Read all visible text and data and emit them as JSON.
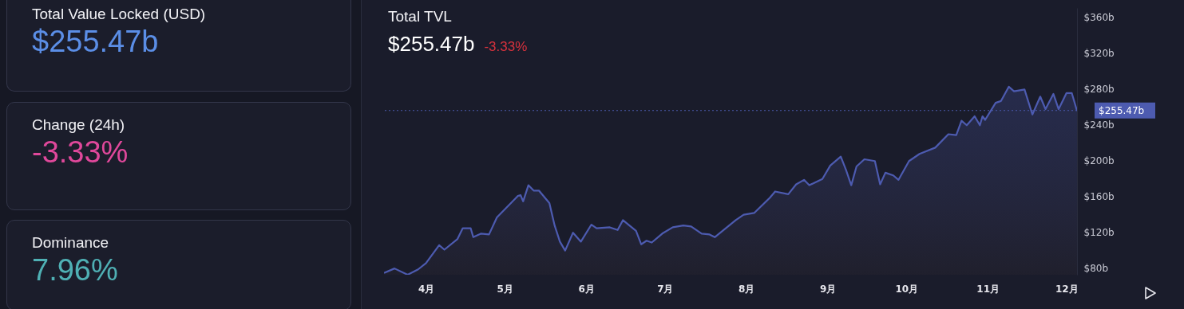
{
  "chart_data": [
    {
      "type": "other",
      "annotations": [
        "Total Value Locked (USD)",
        "$255.47b",
        "Change (24h)",
        "-3.33%",
        "Dominance",
        "7.96%"
      ]
    },
    {
      "type": "area",
      "title": "Total TVL",
      "subtitle": "$255.47b",
      "annotations": [
        "-3.33%"
      ],
      "x": [
        "--03-16",
        "--03-20",
        "--03-25",
        "--03-29",
        "--04-01",
        "--04-06",
        "--04-08",
        "--04-13",
        "--04-15",
        "--04-18",
        "--04-19",
        "--04-22",
        "--04-25",
        "--04-28",
        "--05-02",
        "--05-04",
        "--05-06",
        "--05-07",
        "--05-08",
        "--05-10",
        "--05-12",
        "--05-14",
        "--05-18",
        "--05-20",
        "--05-22",
        "--05-24",
        "--05-27",
        "--05-30",
        "--06-03",
        "--06-05",
        "--06-10",
        "--06-13",
        "--06-15",
        "--06-20",
        "--06-22",
        "--06-24",
        "--06-26",
        "--06-30",
        "--07-04",
        "--07-08",
        "--07-11",
        "--07-15",
        "--07-18",
        "--07-20",
        "--07-28",
        "--07-31",
        "--08-04",
        "--08-10",
        "--08-12",
        "--08-17",
        "--08-20",
        "--08-23",
        "--08-25",
        "--08-30",
        "--09-02",
        "--09-06",
        "--09-08",
        "--09-10",
        "--09-12",
        "--09-15",
        "--09-19",
        "--09-21",
        "--09-23",
        "--09-26",
        "--09-28",
        "--10-02",
        "--10-06",
        "--10-12",
        "--10-17",
        "--10-20",
        "--10-22",
        "--10-24",
        "--10-27",
        "--10-29",
        "--10-30",
        "--10-31",
        "--11-04",
        "--11-06",
        "--11-09",
        "--11-11",
        "--11-15",
        "--11-18",
        "--11-21",
        "--11-23",
        "--11-26",
        "--11-28",
        "--12-01",
        "--12-03",
        "--12-05"
      ],
      "series": [
        {
          "color": "#4d5bb0",
          "values": [
            74,
            79,
            72,
            78,
            85,
            105,
            100,
            112,
            124,
            124,
            114,
            118,
            117,
            136,
            148,
            154,
            160,
            161,
            154,
            172,
            166,
            166,
            152,
            127,
            109,
            99,
            119,
            109,
            128,
            124,
            125,
            122,
            133,
            121,
            106,
            110,
            108,
            118,
            125,
            127,
            126,
            118,
            117,
            114,
            133,
            139,
            141,
            158,
            165,
            162,
            173,
            178,
            172,
            179,
            194,
            204,
            189,
            172,
            193,
            201,
            199,
            173,
            186,
            183,
            178,
            199,
            207,
            214,
            229,
            228,
            244,
            239,
            249,
            239,
            249,
            245,
            264,
            266,
            282,
            277,
            279,
            251,
            271,
            257,
            274,
            257,
            275,
            275,
            255
          ]
        }
      ],
      "xlim": [
        "--03-16",
        "--12-05"
      ],
      "xticks": [
        {
          "value": "--04-01",
          "label": "4月"
        },
        {
          "value": "--05-01",
          "label": "5月"
        },
        {
          "value": "--06-01",
          "label": "6月"
        },
        {
          "value": "--07-01",
          "label": "7月"
        },
        {
          "value": "--08-01",
          "label": "8月"
        },
        {
          "value": "--09-01",
          "label": "9月"
        },
        {
          "value": "--10-01",
          "label": "10月"
        },
        {
          "value": "--11-01",
          "label": "11月"
        },
        {
          "value": "--12-01",
          "label": "12月"
        }
      ],
      "ylim": [
        72,
        370
      ],
      "yticks": [
        {
          "value": 80,
          "label": "$80b"
        },
        {
          "value": 120,
          "label": "$120b"
        },
        {
          "value": 160,
          "label": "$160b"
        },
        {
          "value": 200,
          "label": "$200b"
        },
        {
          "value": 240,
          "label": "$240b"
        },
        {
          "value": 280,
          "label": "$280b"
        },
        {
          "value": 320,
          "label": "$320b"
        },
        {
          "value": 360,
          "label": "$360b"
        }
      ],
      "ref_lines": [
        {
          "axis": "y",
          "value": 255.47,
          "label": "$255.47b",
          "line_style": "dotted"
        }
      ],
      "grid": false
    }
  ]
}
